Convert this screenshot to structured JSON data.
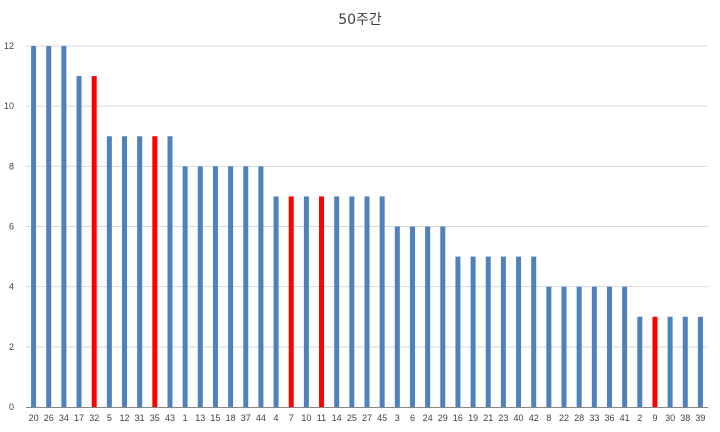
{
  "chart_data": {
    "type": "bar",
    "title": "50주간",
    "xlabel": "",
    "ylabel": "",
    "ylim": [
      0,
      12
    ],
    "ytick_step": 2,
    "grid": true,
    "legend": "none",
    "colors": {
      "default": "#4f81bd",
      "highlight": "#ff0000",
      "grid": "#d9d9d9",
      "axis": "#868686"
    },
    "categories": [
      "20",
      "26",
      "34",
      "17",
      "32",
      "5",
      "12",
      "31",
      "35",
      "43",
      "1",
      "13",
      "15",
      "18",
      "37",
      "44",
      "4",
      "7",
      "10",
      "11",
      "14",
      "25",
      "27",
      "45",
      "3",
      "6",
      "24",
      "29",
      "16",
      "19",
      "21",
      "23",
      "40",
      "42",
      "8",
      "22",
      "28",
      "33",
      "36",
      "41",
      "2",
      "9",
      "30",
      "38",
      "39"
    ],
    "values": [
      12,
      12,
      12,
      11,
      11,
      9,
      9,
      9,
      9,
      9,
      8,
      8,
      8,
      8,
      8,
      8,
      7,
      7,
      7,
      7,
      7,
      7,
      7,
      7,
      6,
      6,
      6,
      6,
      5,
      5,
      5,
      5,
      5,
      5,
      4,
      4,
      4,
      4,
      4,
      4,
      3,
      3,
      3,
      3,
      3
    ],
    "highlighted": [
      "32",
      "35",
      "7",
      "11",
      "9"
    ]
  }
}
